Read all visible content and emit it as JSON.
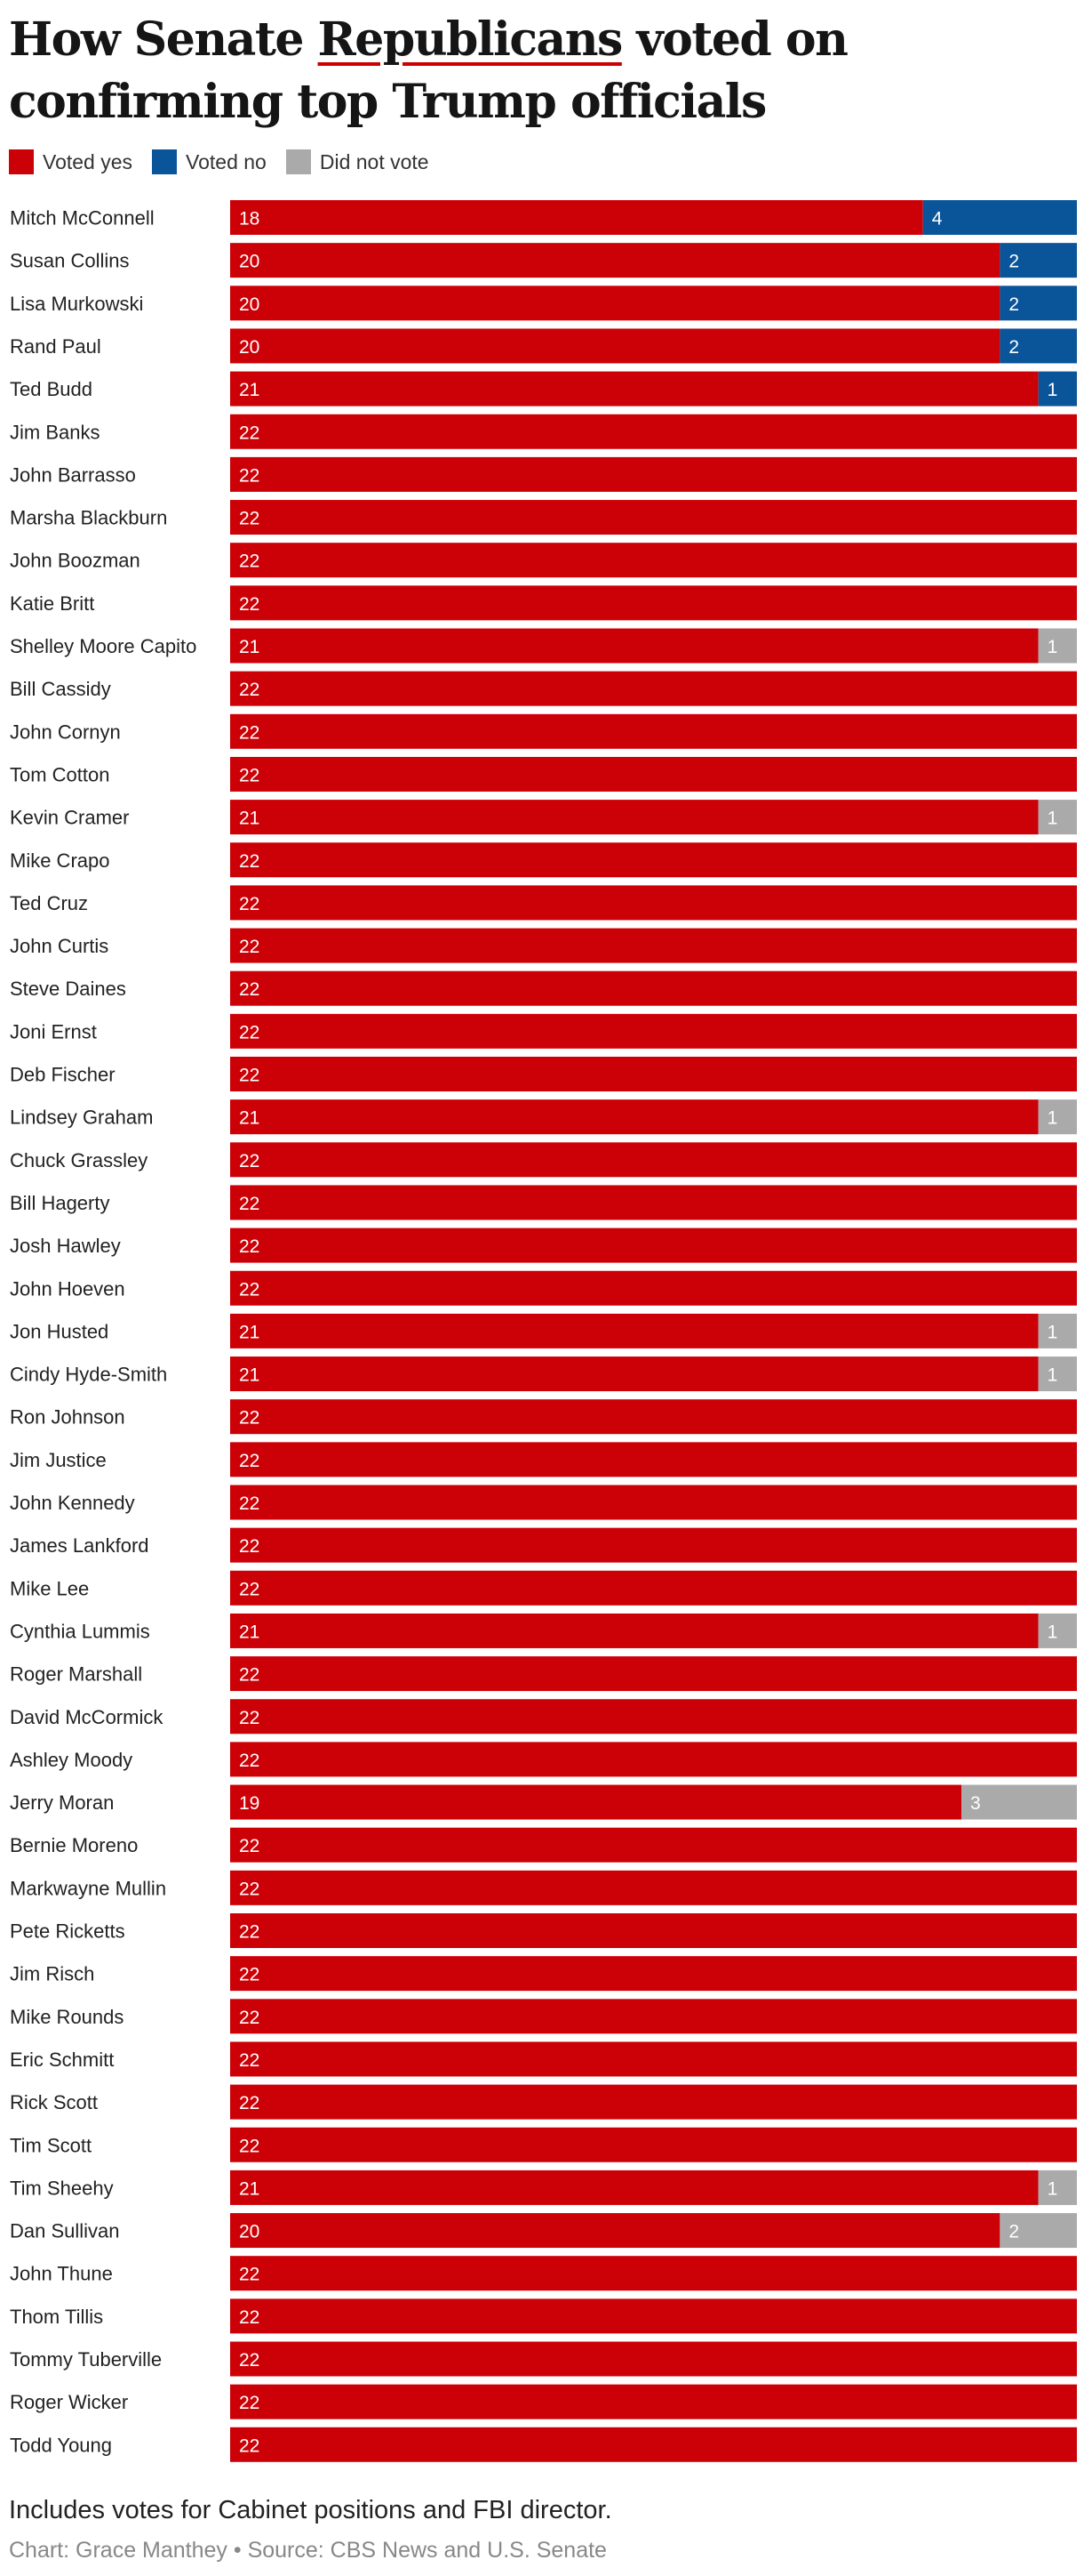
{
  "title": {
    "before": "How Senate ",
    "highlight": "Republicans",
    "after": " voted on confirming top Trump officials"
  },
  "legend": [
    {
      "label": "Voted yes",
      "color": "#cc0007"
    },
    {
      "label": "Voted no",
      "color": "#0a5499"
    },
    {
      "label": "Did not vote",
      "color": "#aaaaaa"
    }
  ],
  "footer": {
    "note": "Includes votes for Cabinet positions and FBI director.",
    "credit": "Chart: Grace Manthey • Source: CBS News and U.S. Senate"
  },
  "chart_data": {
    "type": "bar",
    "orientation": "horizontal",
    "stacked": true,
    "xlim": [
      0,
      22
    ],
    "categories": [
      "Mitch McConnell",
      "Susan Collins",
      "Lisa Murkowski",
      "Rand Paul",
      "Ted Budd",
      "Jim Banks",
      "John Barrasso",
      "Marsha Blackburn",
      "John Boozman",
      "Katie Britt",
      "Shelley Moore Capito",
      "Bill Cassidy",
      "John Cornyn",
      "Tom Cotton",
      "Kevin Cramer",
      "Mike Crapo",
      "Ted Cruz",
      "John Curtis",
      "Steve Daines",
      "Joni Ernst",
      "Deb Fischer",
      "Lindsey Graham",
      "Chuck Grassley",
      "Bill Hagerty",
      "Josh Hawley",
      "John Hoeven",
      "Jon Husted",
      "Cindy Hyde-Smith",
      "Ron Johnson",
      "Jim Justice",
      "John Kennedy",
      "James Lankford",
      "Mike Lee",
      "Cynthia Lummis",
      "Roger Marshall",
      "David McCormick",
      "Ashley Moody",
      "Jerry Moran",
      "Bernie Moreno",
      "Markwayne Mullin",
      "Pete Ricketts",
      "Jim Risch",
      "Mike Rounds",
      "Eric Schmitt",
      "Rick Scott",
      "Tim Scott",
      "Tim Sheehy",
      "Dan Sullivan",
      "John Thune",
      "Thom Tillis",
      "Tommy Tuberville",
      "Roger Wicker",
      "Todd Young"
    ],
    "series": [
      {
        "name": "Voted yes",
        "color": "#cc0007",
        "values": [
          18,
          20,
          20,
          20,
          21,
          22,
          22,
          22,
          22,
          22,
          21,
          22,
          22,
          22,
          21,
          22,
          22,
          22,
          22,
          22,
          22,
          21,
          22,
          22,
          22,
          22,
          21,
          21,
          22,
          22,
          22,
          22,
          22,
          21,
          22,
          22,
          22,
          19,
          22,
          22,
          22,
          22,
          22,
          22,
          22,
          22,
          21,
          20,
          22,
          22,
          22,
          22,
          22
        ]
      },
      {
        "name": "Voted no",
        "color": "#0a5499",
        "values": [
          4,
          2,
          2,
          2,
          1,
          0,
          0,
          0,
          0,
          0,
          0,
          0,
          0,
          0,
          0,
          0,
          0,
          0,
          0,
          0,
          0,
          0,
          0,
          0,
          0,
          0,
          0,
          0,
          0,
          0,
          0,
          0,
          0,
          0,
          0,
          0,
          0,
          0,
          0,
          0,
          0,
          0,
          0,
          0,
          0,
          0,
          0,
          0,
          0,
          0,
          0,
          0,
          0
        ]
      },
      {
        "name": "Did not vote",
        "color": "#aaaaaa",
        "values": [
          0,
          0,
          0,
          0,
          0,
          0,
          0,
          0,
          0,
          0,
          1,
          0,
          0,
          0,
          1,
          0,
          0,
          0,
          0,
          0,
          0,
          1,
          0,
          0,
          0,
          0,
          1,
          1,
          0,
          0,
          0,
          0,
          0,
          1,
          0,
          0,
          0,
          3,
          0,
          0,
          0,
          0,
          0,
          0,
          0,
          0,
          1,
          2,
          0,
          0,
          0,
          0,
          0
        ]
      }
    ]
  }
}
